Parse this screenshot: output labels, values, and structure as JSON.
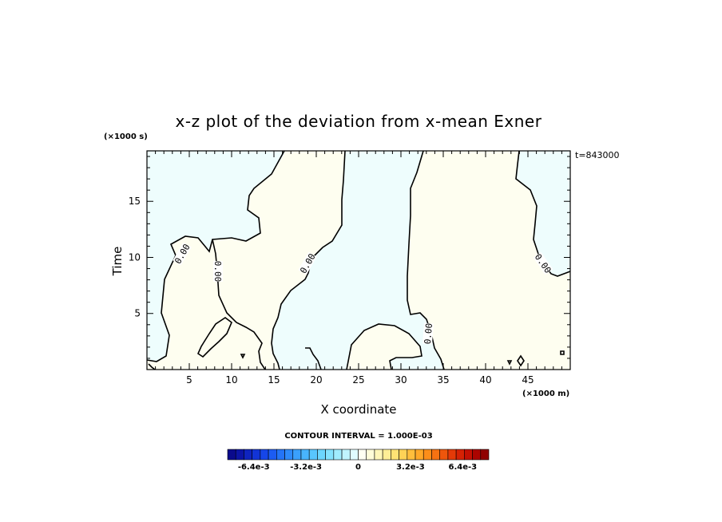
{
  "chart_data": {
    "type": "contour",
    "title": "x-z plot of the deviation from x-mean Exner",
    "xlabel": "X coordinate",
    "ylabel": "Time",
    "x_scale_note": "(×1000 m)",
    "y_scale_note": "(×1000 s)",
    "xlim": [
      0,
      50
    ],
    "ylim": [
      0,
      19.5
    ],
    "x_ticks": [
      5,
      10,
      15,
      20,
      25,
      30,
      35,
      40,
      45
    ],
    "y_ticks": [
      5,
      10,
      15
    ],
    "time_label": "t=843000",
    "contour_level_label": "0.00",
    "contour_interval_text": "CONTOUR INTERVAL = 1.000E-03",
    "colorbar": {
      "range": [
        -0.008,
        0.008
      ],
      "tick_labels": [
        "-6.4e-3",
        "-3.2e-3",
        "0",
        "3.2e-3",
        "6.4e-3"
      ],
      "tick_values": [
        -0.0064,
        -0.0032,
        0,
        0.0032,
        0.0064
      ],
      "colors": [
        "#0a0a8c",
        "#0c14a6",
        "#0f24bf",
        "#1234d6",
        "#1646e8",
        "#1c5cf2",
        "#2474f7",
        "#2e8afa",
        "#3aa0fc",
        "#48b4fd",
        "#58c6fe",
        "#6cd6fe",
        "#84e2fe",
        "#a0ecfe",
        "#c0f4fe",
        "#e0fbff",
        "#fffff2",
        "#fffcd8",
        "#fff6b8",
        "#ffee96",
        "#ffe274",
        "#ffd256",
        "#ffbe3c",
        "#ffa828",
        "#fc8e1a",
        "#f67212",
        "#ee560c",
        "#e43a08",
        "#d62204",
        "#c41002",
        "#ac0400",
        "#900000"
      ]
    },
    "fields": {
      "negative_fill": "#eefdfd",
      "positive_fill": "#fefef0"
    }
  }
}
